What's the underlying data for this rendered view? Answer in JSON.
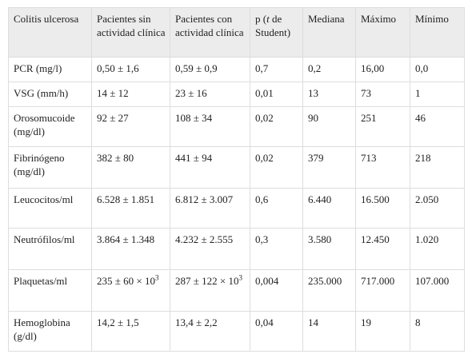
{
  "table": {
    "header": [
      "Colitis ulcerosa",
      "Pacientes sin actividad clínica",
      "Pacientes con actividad clínica",
      [
        {
          "text": "p ("
        },
        {
          "text": "t",
          "italic": true
        },
        {
          "text": " de Student)"
        }
      ],
      "Mediana",
      "Máximo",
      "Mínimo"
    ],
    "rows": [
      [
        "PCR (mg/l)",
        "0,50 ± 1,6",
        "0,59 ± 0,9",
        "0,7",
        "0,2",
        "16,00",
        "0,0"
      ],
      [
        "VSG (mm/h)",
        "14 ± 12",
        "23 ± 16",
        "0,01",
        "13",
        "73",
        "1"
      ],
      [
        "Orosomucoide (mg/dl)",
        "92 ± 27",
        "108 ± 34",
        "0,02",
        "90",
        "251",
        "46"
      ],
      [
        "Fibrinógeno (mg/dl)",
        "382 ± 80",
        "441 ± 94",
        "0,02",
        "379",
        "713",
        "218"
      ],
      [
        "Leucocitos/ml",
        "6.528 ± 1.851",
        "6.812 ± 3.007",
        "0,6",
        "6.440",
        "16.500",
        "2.050"
      ],
      [
        "Neutrófilos/ml",
        "3.864 ± 1.348",
        "4.232 ± 2.555",
        "0,3",
        "3.580",
        "12.450",
        "1.020"
      ],
      [
        "Plaquetas/ml",
        {
          "text": "235 ± 60 × 10",
          "sup": "3"
        },
        {
          "text": "287 ± 122 × 10",
          "sup": "3"
        },
        "0,004",
        "235.000",
        "717.000",
        "107.000"
      ],
      [
        "Hemoglobina (g/dl)",
        "14,2 ± 1,5",
        "13,4 ± 2,2",
        "0,04",
        "14",
        "19",
        "8"
      ]
    ]
  }
}
